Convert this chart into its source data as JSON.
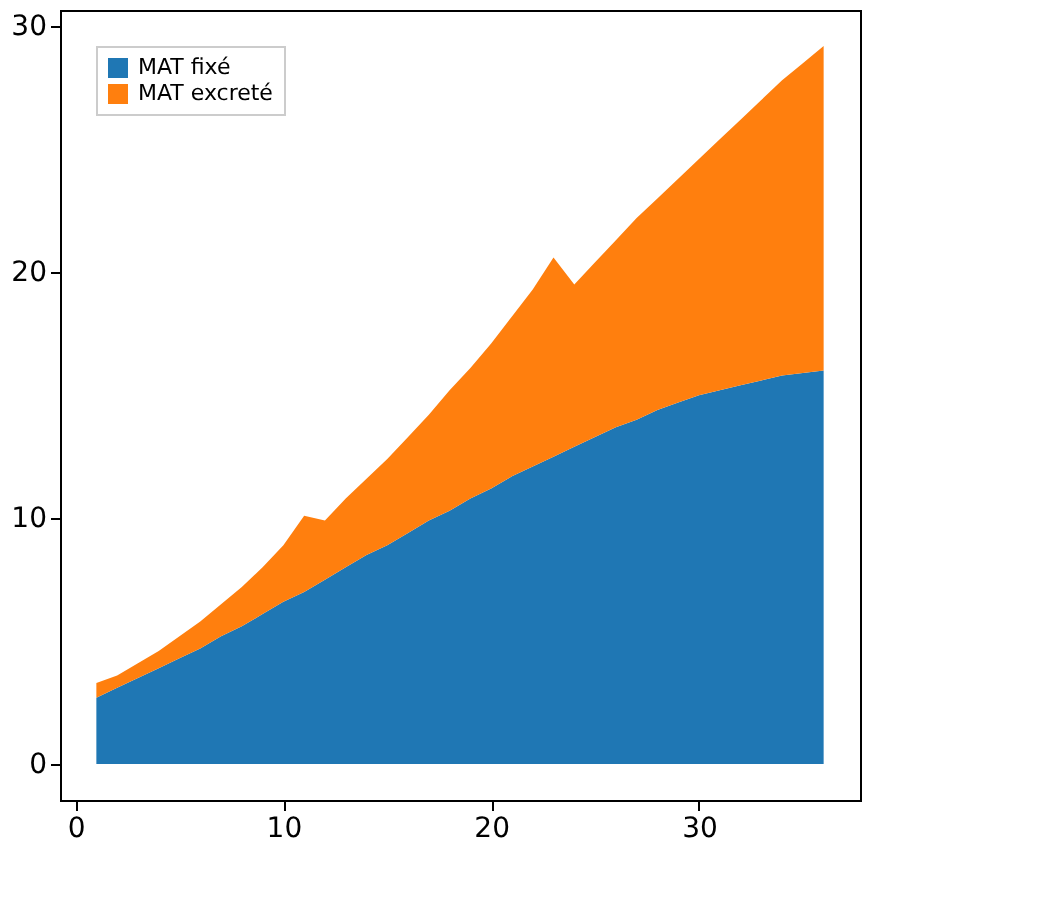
{
  "chart_data": {
    "type": "area",
    "stacked": true,
    "x": [
      1,
      2,
      3,
      4,
      5,
      6,
      7,
      8,
      9,
      10,
      11,
      12,
      13,
      14,
      15,
      16,
      17,
      18,
      19,
      20,
      21,
      22,
      23,
      24,
      25,
      26,
      27,
      28,
      29,
      30,
      31,
      32,
      33,
      34,
      35,
      36
    ],
    "series": [
      {
        "name": "MAT fixé",
        "color": "#1f77b4",
        "values": [
          2.7,
          3.1,
          3.5,
          3.9,
          4.3,
          4.7,
          5.2,
          5.6,
          6.1,
          6.6,
          7.0,
          7.5,
          8.0,
          8.5,
          8.9,
          9.4,
          9.9,
          10.3,
          10.8,
          11.2,
          11.7,
          12.1,
          12.5,
          12.9,
          13.3,
          13.7,
          14.0,
          14.4,
          14.7,
          15.0,
          15.2,
          15.4,
          15.6,
          15.8,
          15.9,
          16.0
        ]
      },
      {
        "name": "MAT excreté",
        "color": "#ff7f0e",
        "values": [
          0.6,
          0.5,
          0.6,
          0.7,
          0.9,
          1.1,
          1.3,
          1.6,
          1.9,
          2.3,
          3.1,
          2.4,
          2.8,
          3.1,
          3.5,
          3.9,
          4.3,
          4.9,
          5.3,
          5.9,
          6.5,
          7.2,
          8.1,
          6.6,
          7.1,
          7.6,
          8.2,
          8.6,
          9.1,
          9.6,
          10.2,
          10.8,
          11.4,
          12.0,
          12.6,
          13.2
        ]
      }
    ],
    "xlim": [
      -0.75,
      37.75
    ],
    "xticks": [
      0,
      10,
      20,
      30
    ],
    "ylim": [
      -1.46,
      30.66
    ],
    "yticks": [
      0,
      10,
      20,
      30
    ],
    "grid": false,
    "legend": "top left"
  }
}
